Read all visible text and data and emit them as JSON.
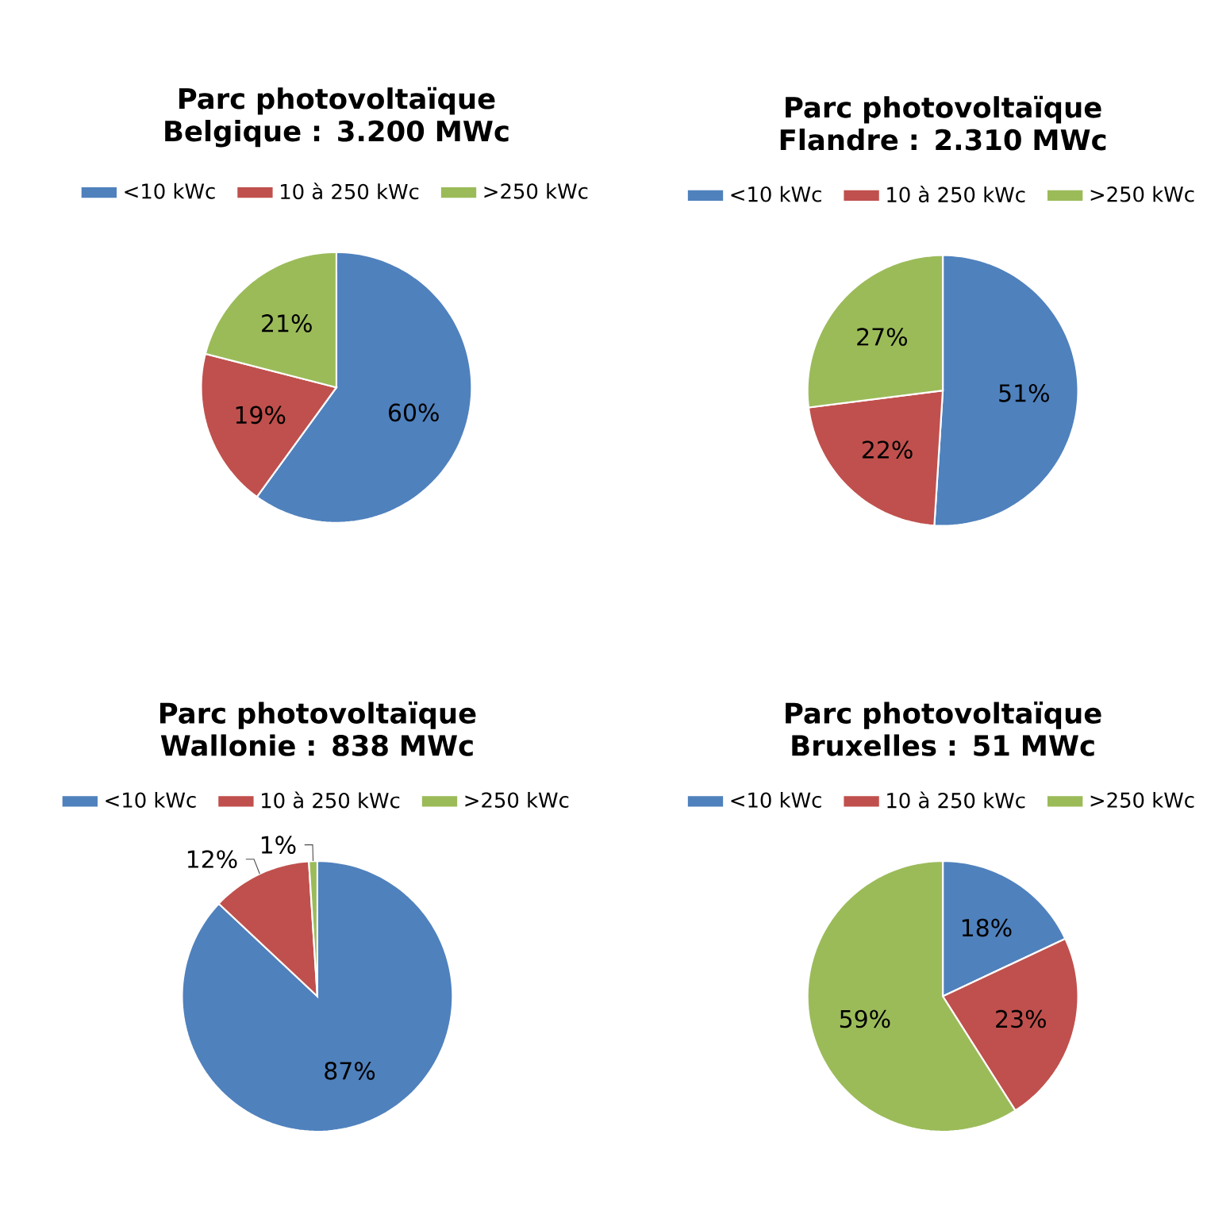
{
  "chart_data": [
    {
      "type": "pie",
      "title": "Parc photovoltaïque Belgique : 3.200 MWc",
      "legend": "top",
      "categories": [
        "<10 kWc",
        "10 à 250 kWc",
        ">250 kWc"
      ],
      "values": [
        60,
        19,
        21
      ],
      "colors": [
        "#4f81bd",
        "#c0504d",
        "#9bbb59"
      ],
      "value_labels": [
        "60%",
        "19%",
        "21%"
      ]
    },
    {
      "type": "pie",
      "title": "Parc photovoltaïque Flandre : 2.310 MWc",
      "legend": "top",
      "categories": [
        "<10 kWc",
        "10 à 250 kWc",
        ">250 kWc"
      ],
      "values": [
        51,
        22,
        27
      ],
      "colors": [
        "#4f81bd",
        "#c0504d",
        "#9bbb59"
      ],
      "value_labels": [
        "51%",
        "22%",
        "27%"
      ]
    },
    {
      "type": "pie",
      "title": "Parc photovoltaïque Wallonie : 838 MWc",
      "legend": "top",
      "categories": [
        "<10 kWc",
        "10 à 250 kWc",
        ">250 kWc"
      ],
      "values": [
        87,
        12,
        1
      ],
      "colors": [
        "#4f81bd",
        "#c0504d",
        "#9bbb59"
      ],
      "value_labels": [
        "87%",
        "12%",
        "1%"
      ]
    },
    {
      "type": "pie",
      "title": "Parc photovoltaïque Bruxelles : 51 MWc",
      "legend": "top",
      "categories": [
        "<10 kWc",
        "10 à 250 kWc",
        ">250 kWc"
      ],
      "values": [
        18,
        23,
        59
      ],
      "colors": [
        "#4f81bd",
        "#c0504d",
        "#9bbb59"
      ],
      "value_labels": [
        "18%",
        "23%",
        "59%"
      ]
    }
  ]
}
